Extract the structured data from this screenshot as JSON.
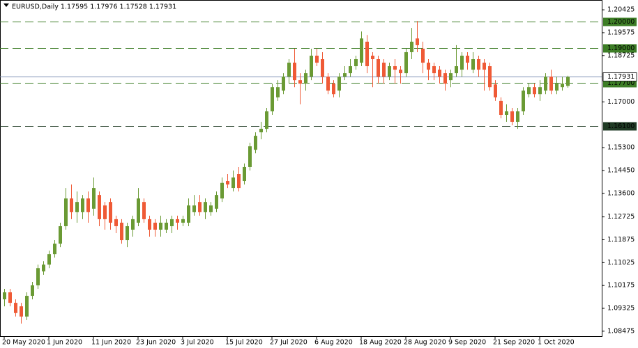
{
  "chart_data": {
    "type": "candlestick",
    "title": "EURUSD,Daily  1.17595 1.17976 1.17528 1.17931",
    "categories": [
      "20 May 2020",
      null,
      null,
      null,
      null,
      null,
      null,
      null,
      "1 Jun 2020",
      null,
      null,
      null,
      null,
      null,
      null,
      null,
      "11 Jun 2020",
      null,
      null,
      null,
      null,
      null,
      null,
      null,
      "23 Jun 2020",
      null,
      null,
      null,
      null,
      null,
      null,
      null,
      "3 Jul 2020",
      null,
      null,
      null,
      null,
      null,
      null,
      null,
      "15 Jul 2020",
      null,
      null,
      null,
      null,
      null,
      null,
      null,
      "27 Jul 2020",
      null,
      null,
      null,
      null,
      null,
      null,
      null,
      "6 Aug 2020",
      null,
      null,
      null,
      null,
      null,
      null,
      null,
      "18 Aug 2020",
      null,
      null,
      null,
      null,
      null,
      null,
      null,
      "28 Aug 2020",
      null,
      null,
      null,
      null,
      null,
      null,
      null,
      "9 Sep 2020",
      null,
      null,
      null,
      null,
      null,
      null,
      null,
      "21 Sep 2020",
      null,
      null,
      null,
      null,
      null,
      null,
      null,
      "1 Oct 2020",
      null,
      null,
      null,
      null,
      null
    ],
    "open": [
      1.0966,
      1.0992,
      1.0953,
      1.094,
      1.0902,
      1.0979,
      1.1018,
      1.107,
      1.1095,
      1.1134,
      1.1173,
      1.1238,
      1.1341,
      1.129,
      1.129,
      1.1341,
      1.1303,
      1.1354,
      1.1315,
      1.1328,
      1.1264,
      1.1251,
      1.1186,
      1.1225,
      1.1251,
      1.1328,
      1.1264,
      1.1251,
      1.1225,
      1.1225,
      1.1238,
      1.1264,
      1.1251,
      1.1251,
      1.129,
      1.1328,
      1.129,
      1.129,
      1.1303,
      1.1341,
      1.1406,
      1.138,
      1.1432,
      1.1406,
      1.1458,
      1.1522,
      1.1587,
      1.16,
      1.1665,
      1.1717,
      1.1742,
      1.1794,
      1.1846,
      1.1781,
      1.1768,
      1.1794,
      1.1872,
      1.1859,
      1.1794,
      1.1768,
      1.1742,
      1.1794,
      1.1807,
      1.1833,
      1.1846,
      1.1924,
      1.1872,
      1.1859,
      1.1846,
      1.1794,
      1.1833,
      1.182,
      1.1807,
      1.1885,
      1.1936,
      1.1898,
      1.1846,
      1.1833,
      1.182,
      1.1807,
      1.1781,
      1.1807,
      1.182,
      1.1872,
      1.182,
      1.1859,
      1.1846,
      1.1833,
      1.1765,
      1.1704,
      1.1652,
      1.1665,
      1.1626,
      1.1665,
      1.1729,
      1.1755,
      1.1729,
      1.1742,
      1.1794,
      1.1742,
      1.1755,
      1.17595
    ],
    "high": [
      1.1005,
      1.1005,
      1.0966,
      1.0953,
      1.0992,
      1.1031,
      1.1095,
      1.1108,
      1.1147,
      1.1186,
      1.1251,
      1.138,
      1.1393,
      1.1367,
      1.1354,
      1.1367,
      1.1419,
      1.1367,
      1.1328,
      1.1341,
      1.1277,
      1.1264,
      1.1251,
      1.1277,
      1.138,
      1.1341,
      1.1277,
      1.1264,
      1.1277,
      1.1264,
      1.1277,
      1.1277,
      1.1277,
      1.1341,
      1.1354,
      1.1354,
      1.1341,
      1.1328,
      1.1367,
      1.1419,
      1.1432,
      1.1445,
      1.1458,
      1.1471,
      1.1548,
      1.1587,
      1.1626,
      1.1678,
      1.1768,
      1.1781,
      1.1807,
      1.1859,
      1.1898,
      1.1807,
      1.182,
      1.1898,
      1.1898,
      1.1885,
      1.1807,
      1.1781,
      1.1807,
      1.1833,
      1.1859,
      1.1872,
      1.1962,
      1.1949,
      1.1885,
      1.1872,
      1.1859,
      1.1846,
      1.1859,
      1.1833,
      1.1898,
      1.1975,
      1.2001,
      1.1924,
      1.1859,
      1.1846,
      1.1833,
      1.182,
      1.182,
      1.1911,
      1.1885,
      1.1885,
      1.1885,
      1.1872,
      1.1859,
      1.1846,
      1.1781,
      1.1717,
      1.1691,
      1.1678,
      1.1678,
      1.1755,
      1.1768,
      1.1768,
      1.1781,
      1.1807,
      1.182,
      1.1794,
      1.1794,
      1.17976
    ],
    "low": [
      1.094,
      1.094,
      1.0902,
      1.0876,
      1.0889,
      1.0966,
      1.1005,
      1.1057,
      1.1082,
      1.1121,
      1.116,
      1.1225,
      1.1264,
      1.1251,
      1.1264,
      1.1251,
      1.1277,
      1.1238,
      1.1225,
      1.1225,
      1.1212,
      1.1173,
      1.116,
      1.1199,
      1.1238,
      1.1251,
      1.1199,
      1.1199,
      1.1199,
      1.1212,
      1.1212,
      1.1225,
      1.1238,
      1.1238,
      1.1277,
      1.1277,
      1.1264,
      1.1277,
      1.129,
      1.1328,
      1.138,
      1.1367,
      1.1367,
      1.1393,
      1.1445,
      1.1509,
      1.1561,
      1.1587,
      1.1652,
      1.1704,
      1.1729,
      1.1768,
      1.1755,
      1.1691,
      1.1742,
      1.1781,
      1.1833,
      1.1768,
      1.1729,
      1.1717,
      1.1717,
      1.1781,
      1.1794,
      1.182,
      1.1833,
      1.1807,
      1.1755,
      1.1768,
      1.1768,
      1.1781,
      1.1768,
      1.1768,
      1.1794,
      1.1859,
      1.1885,
      1.1807,
      1.1781,
      1.1781,
      1.1768,
      1.1742,
      1.1755,
      1.1794,
      1.1794,
      1.182,
      1.1807,
      1.1794,
      1.1742,
      1.1742,
      1.1704,
      1.1639,
      1.1626,
      1.1613,
      1.16,
      1.1652,
      1.1717,
      1.1717,
      1.1704,
      1.1729,
      1.1729,
      1.1729,
      1.1742,
      1.17528
    ],
    "close": [
      1.0992,
      1.0953,
      1.0915,
      1.0902,
      1.0979,
      1.1018,
      1.1082,
      1.1095,
      1.1134,
      1.1173,
      1.1238,
      1.1341,
      1.129,
      1.1328,
      1.1341,
      1.129,
      1.138,
      1.1264,
      1.1264,
      1.1251,
      1.1238,
      1.1186,
      1.1238,
      1.1264,
      1.1341,
      1.1264,
      1.1225,
      1.1225,
      1.1251,
      1.1251,
      1.1264,
      1.1251,
      1.1264,
      1.1315,
      1.1315,
      1.129,
      1.1328,
      1.1315,
      1.1354,
      1.1399,
      1.1393,
      1.1419,
      1.138,
      1.1458,
      1.1535,
      1.1574,
      1.16,
      1.1665,
      1.1755,
      1.1755,
      1.1794,
      1.1846,
      1.1781,
      1.1768,
      1.1807,
      1.1872,
      1.1846,
      1.1794,
      1.1742,
      1.1729,
      1.1794,
      1.1807,
      1.1833,
      1.1859,
      1.1936,
      1.1833,
      1.1859,
      1.1794,
      1.1794,
      1.1833,
      1.182,
      1.1807,
      1.1885,
      1.1924,
      1.1911,
      1.1846,
      1.182,
      1.1807,
      1.1794,
      1.1768,
      1.1807,
      1.1833,
      1.1872,
      1.1846,
      1.1859,
      1.182,
      1.182,
      1.1755,
      1.1717,
      1.1652,
      1.1665,
      1.1626,
      1.1665,
      1.1742,
      1.1755,
      1.1729,
      1.1755,
      1.1794,
      1.1742,
      1.1768,
      1.1768,
      1.17931
    ],
    "up_color": "#6a9a34",
    "down_color": "#ef5a36",
    "ylim": [
      1.0829,
      1.2079
    ],
    "yticks": [
      1.20425,
      1.19575,
      1.18725,
      {
        "value": 1.17,
        "label": "1.17000"
      },
      {
        "value": 1.153,
        "label": "1.15300"
      },
      {
        "value": 1.1445,
        "label": "1.14450"
      },
      {
        "value": 1.136,
        "label": "1.13600"
      },
      1.12725,
      1.11875,
      1.11025,
      1.10175,
      1.09325,
      1.08475
    ],
    "levels": [
      {
        "value": 1.2,
        "label": "1.20000",
        "color": "#3d7d26"
      },
      {
        "value": 1.19,
        "label": "1.19000",
        "color": "#3d7d26"
      },
      {
        "value": 1.177,
        "label": "1.17700",
        "color": "#3d7d26"
      },
      {
        "value": 1.161,
        "label": "1.16100",
        "color": "#1f3a24"
      }
    ],
    "bid": {
      "value": 1.17931,
      "label": "1.17931",
      "color": "#7d8fb3"
    }
  }
}
